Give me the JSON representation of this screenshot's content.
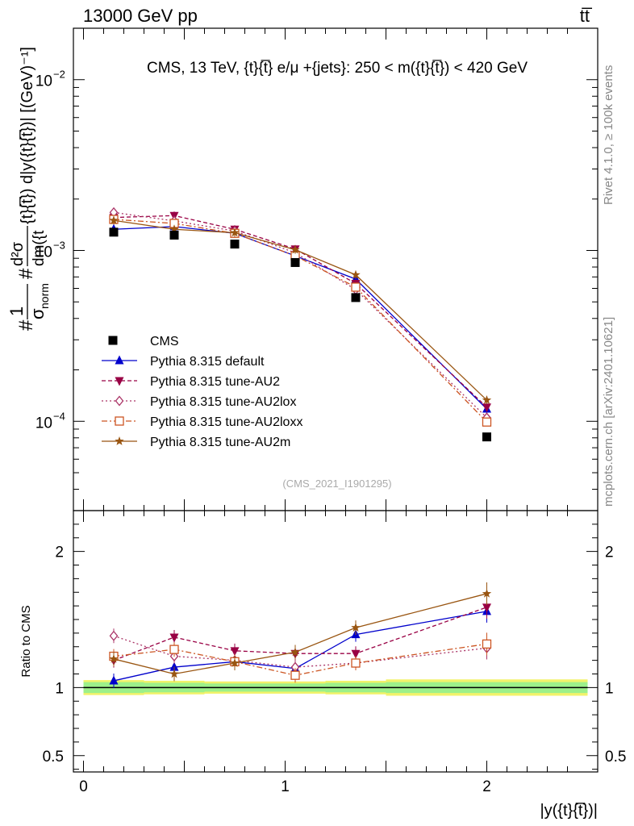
{
  "header": {
    "left": "13000 GeV pp",
    "right": "tt̅"
  },
  "side_labels": {
    "rivet": "Rivet 4.1.0, ≥ 100k events",
    "mcplots": "mcplots.cern.ch [arXiv:2401.10621]"
  },
  "chart_data": [
    {
      "type": "line",
      "title": "CMS, 13 TeV, {t}{t̅} e/μ +{jets}: 250 < m({t}{t̅}) < 420 GeV",
      "watermark": "(CMS_2021_I1901295)",
      "ylabel": "#1/σnorm # d²σ / dm({t}{t̅}) d|y({t}{t̅})| [(GeV)⁻¹]",
      "ylabel_parts": {
        "one": "1",
        "hash": "#",
        "sigma_norm": "σ",
        "norm": "norm",
        "num": "d²σ",
        "num2": "{t}{t̅}) d|y({t}{t̅})| [(GeV)⁻¹]",
        "den": "dm({t"
      },
      "yscale": "log",
      "ylim": [
        3e-05,
        0.02
      ],
      "xlim": [
        -0.05,
        2.55
      ],
      "yticks": [
        {
          "value": 0.01,
          "base": "10",
          "exp": "−2"
        },
        {
          "value": 0.001,
          "base": "10",
          "exp": "−3"
        },
        {
          "value": 0.0001,
          "base": "10",
          "exp": "−4"
        }
      ],
      "x": [
        0.15,
        0.45,
        0.75,
        1.05,
        1.35,
        2.0
      ],
      "data": {
        "name": "CMS",
        "values": [
          0.00128,
          0.00123,
          0.00109,
          0.00085,
          0.00053,
          8.1e-05
        ]
      },
      "series": [
        {
          "name": "Pythia 8.315 default",
          "color": "#0000cc",
          "dash": "",
          "marker": "triangle-up",
          "values": [
            0.00133,
            0.00138,
            0.00126,
            0.00093,
            0.00068,
            0.000118
          ]
        },
        {
          "name": "Pythia 8.315 tune-AU2",
          "color": "#990044",
          "dash": "5,3",
          "marker": "triangle-down",
          "values": [
            0.00156,
            0.0016,
            0.00133,
            0.00102,
            0.00064,
            0.000121
          ]
        },
        {
          "name": "Pythia 8.315 tune-AU2lox",
          "color": "#aa3366",
          "dash": "2,3",
          "marker": "diamond-open",
          "values": [
            0.00167,
            0.00149,
            0.0013,
            0.00097,
            0.00059,
            0.000105
          ]
        },
        {
          "name": "Pythia 8.315 tune-AU2loxx",
          "color": "#cc5522",
          "dash": "7,3,2,3",
          "marker": "square-open",
          "values": [
            0.00152,
            0.00144,
            0.00126,
            0.00093,
            0.00061,
            9.9e-05
          ]
        },
        {
          "name": "Pythia 8.315 tune-AU2m",
          "color": "#995511",
          "dash": "",
          "marker": "star",
          "values": [
            0.0015,
            0.00133,
            0.00127,
            0.00101,
            0.00072,
            0.000133
          ]
        }
      ]
    },
    {
      "type": "line",
      "ylabel": "Ratio to CMS",
      "xlabel": "|y({t}{t̅})|",
      "ylim": [
        0.38,
        2.3
      ],
      "xlim": [
        -0.05,
        2.55
      ],
      "yticks": [
        {
          "value": 0.5,
          "label": "0.5"
        },
        {
          "value": 1,
          "label": "1"
        },
        {
          "value": 2,
          "label": "2"
        }
      ],
      "xticks": [
        {
          "value": 0,
          "label": "0"
        },
        {
          "value": 1,
          "label": "1"
        },
        {
          "value": 2,
          "label": "2"
        }
      ],
      "band_bins": [
        [
          0,
          0.3
        ],
        [
          0.3,
          0.6
        ],
        [
          0.6,
          0.9
        ],
        [
          0.9,
          1.2
        ],
        [
          1.2,
          1.5
        ],
        [
          1.5,
          2.5
        ]
      ],
      "band_inner": [
        0.04,
        0.035,
        0.03,
        0.03,
        0.035,
        0.04
      ],
      "band_outer": [
        0.055,
        0.05,
        0.045,
        0.045,
        0.05,
        0.06
      ],
      "x": [
        0.15,
        0.45,
        0.75,
        1.05,
        1.35,
        2.0
      ],
      "series": [
        {
          "name": "Pythia 8.315 default",
          "values": [
            1.05,
            1.15,
            1.19,
            1.14,
            1.39,
            1.56
          ]
        },
        {
          "name": "Pythia 8.315 tune-AU2",
          "values": [
            1.2,
            1.37,
            1.27,
            1.25,
            1.25,
            1.59
          ]
        },
        {
          "name": "Pythia 8.315 tune-AU2lox",
          "values": [
            1.38,
            1.23,
            1.2,
            1.15,
            1.18,
            1.29
          ]
        },
        {
          "name": "Pythia 8.315 tune-AU2loxx",
          "values": [
            1.23,
            1.28,
            1.19,
            1.09,
            1.18,
            1.32
          ]
        },
        {
          "name": "Pythia 8.315 tune-AU2m",
          "values": [
            1.21,
            1.1,
            1.18,
            1.26,
            1.44,
            1.69
          ]
        }
      ]
    }
  ]
}
